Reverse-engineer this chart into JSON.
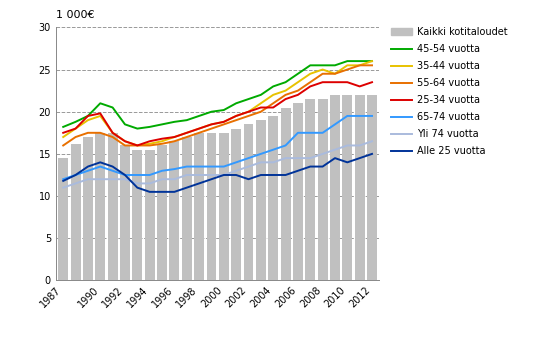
{
  "years": [
    1987,
    1988,
    1989,
    1990,
    1991,
    1992,
    1993,
    1994,
    1995,
    1996,
    1997,
    1998,
    1999,
    2000,
    2001,
    2002,
    2003,
    2004,
    2005,
    2006,
    2007,
    2008,
    2009,
    2010,
    2011,
    2012
  ],
  "bar_values": [
    14.5,
    16.2,
    17.0,
    17.5,
    17.5,
    16.0,
    15.5,
    15.5,
    16.0,
    16.5,
    17.0,
    17.5,
    17.5,
    17.5,
    18.0,
    18.5,
    19.0,
    19.5,
    20.5,
    21.0,
    21.5,
    21.5,
    22.0,
    22.0,
    22.0,
    22.0
  ],
  "bar_color": "#c0c0c0",
  "lines": {
    "45-54 vuotta": {
      "color": "#00aa00",
      "values": [
        18.2,
        18.8,
        19.5,
        21.0,
        20.5,
        18.5,
        18.0,
        18.2,
        18.5,
        18.8,
        19.0,
        19.5,
        20.0,
        20.2,
        21.0,
        21.5,
        22.0,
        23.0,
        23.5,
        24.5,
        25.5,
        25.5,
        25.5,
        26.0,
        26.0,
        26.0
      ]
    },
    "35-44 vuotta": {
      "color": "#e8c200",
      "values": [
        17.0,
        18.0,
        19.0,
        19.5,
        17.5,
        16.5,
        16.0,
        16.2,
        16.5,
        17.0,
        17.5,
        18.0,
        18.5,
        18.8,
        19.5,
        20.0,
        21.0,
        22.0,
        22.5,
        23.5,
        24.5,
        25.0,
        24.5,
        25.5,
        25.5,
        26.0
      ]
    },
    "55-64 vuotta": {
      "color": "#e87000",
      "values": [
        16.0,
        17.0,
        17.5,
        17.5,
        17.0,
        16.0,
        16.0,
        16.0,
        16.2,
        16.5,
        17.0,
        17.5,
        18.0,
        18.5,
        19.0,
        19.5,
        20.0,
        21.0,
        22.0,
        22.5,
        23.5,
        24.5,
        24.5,
        25.0,
        25.5,
        25.5
      ]
    },
    "25-34 vuotta": {
      "color": "#dd0000",
      "values": [
        17.5,
        18.0,
        19.5,
        19.8,
        17.5,
        16.5,
        16.0,
        16.5,
        16.8,
        17.0,
        17.5,
        18.0,
        18.5,
        18.8,
        19.5,
        20.0,
        20.5,
        20.5,
        21.5,
        22.0,
        23.0,
        23.5,
        23.5,
        23.5,
        23.0,
        23.5
      ]
    },
    "65-74 vuotta": {
      "color": "#3399ff",
      "values": [
        12.0,
        12.5,
        13.0,
        13.5,
        13.0,
        12.5,
        12.5,
        12.5,
        13.0,
        13.2,
        13.5,
        13.5,
        13.5,
        13.5,
        14.0,
        14.5,
        15.0,
        15.5,
        16.0,
        17.5,
        17.5,
        17.5,
        18.5,
        19.5,
        19.5,
        19.5
      ]
    },
    "Yli 74 vuotta": {
      "color": "#aabbdd",
      "values": [
        11.0,
        11.5,
        12.0,
        12.0,
        12.0,
        12.0,
        11.5,
        11.5,
        12.0,
        12.0,
        12.5,
        12.5,
        12.5,
        12.5,
        13.0,
        13.5,
        14.0,
        14.0,
        14.5,
        14.5,
        14.5,
        15.0,
        15.5,
        16.0,
        16.0,
        16.5
      ]
    },
    "Alle 25 vuotta": {
      "color": "#003399",
      "values": [
        11.8,
        12.5,
        13.5,
        14.0,
        13.5,
        12.5,
        11.0,
        10.5,
        10.5,
        10.5,
        11.0,
        11.5,
        12.0,
        12.5,
        12.5,
        12.0,
        12.5,
        12.5,
        12.5,
        13.0,
        13.5,
        13.5,
        14.5,
        14.0,
        14.5,
        15.0
      ]
    }
  },
  "ylabel": "1 000€",
  "ylim": [
    0,
    30
  ],
  "yticks": [
    0,
    5,
    10,
    15,
    20,
    25,
    30
  ],
  "xtick_years": [
    1987,
    1990,
    1992,
    1994,
    1996,
    1998,
    2000,
    2002,
    2004,
    2006,
    2008,
    2010,
    2012
  ],
  "legend_order": [
    "Kaikki kotitaloudet",
    "45-54 vuotta",
    "35-44 vuotta",
    "55-64 vuotta",
    "25-34 vuotta",
    "65-74 vuotta",
    "Yli 74 vuotta",
    "Alle 25 vuotta"
  ],
  "grid_color": "#999999",
  "grid_linestyle": "--",
  "background_color": "#ffffff",
  "line_width": 1.4
}
